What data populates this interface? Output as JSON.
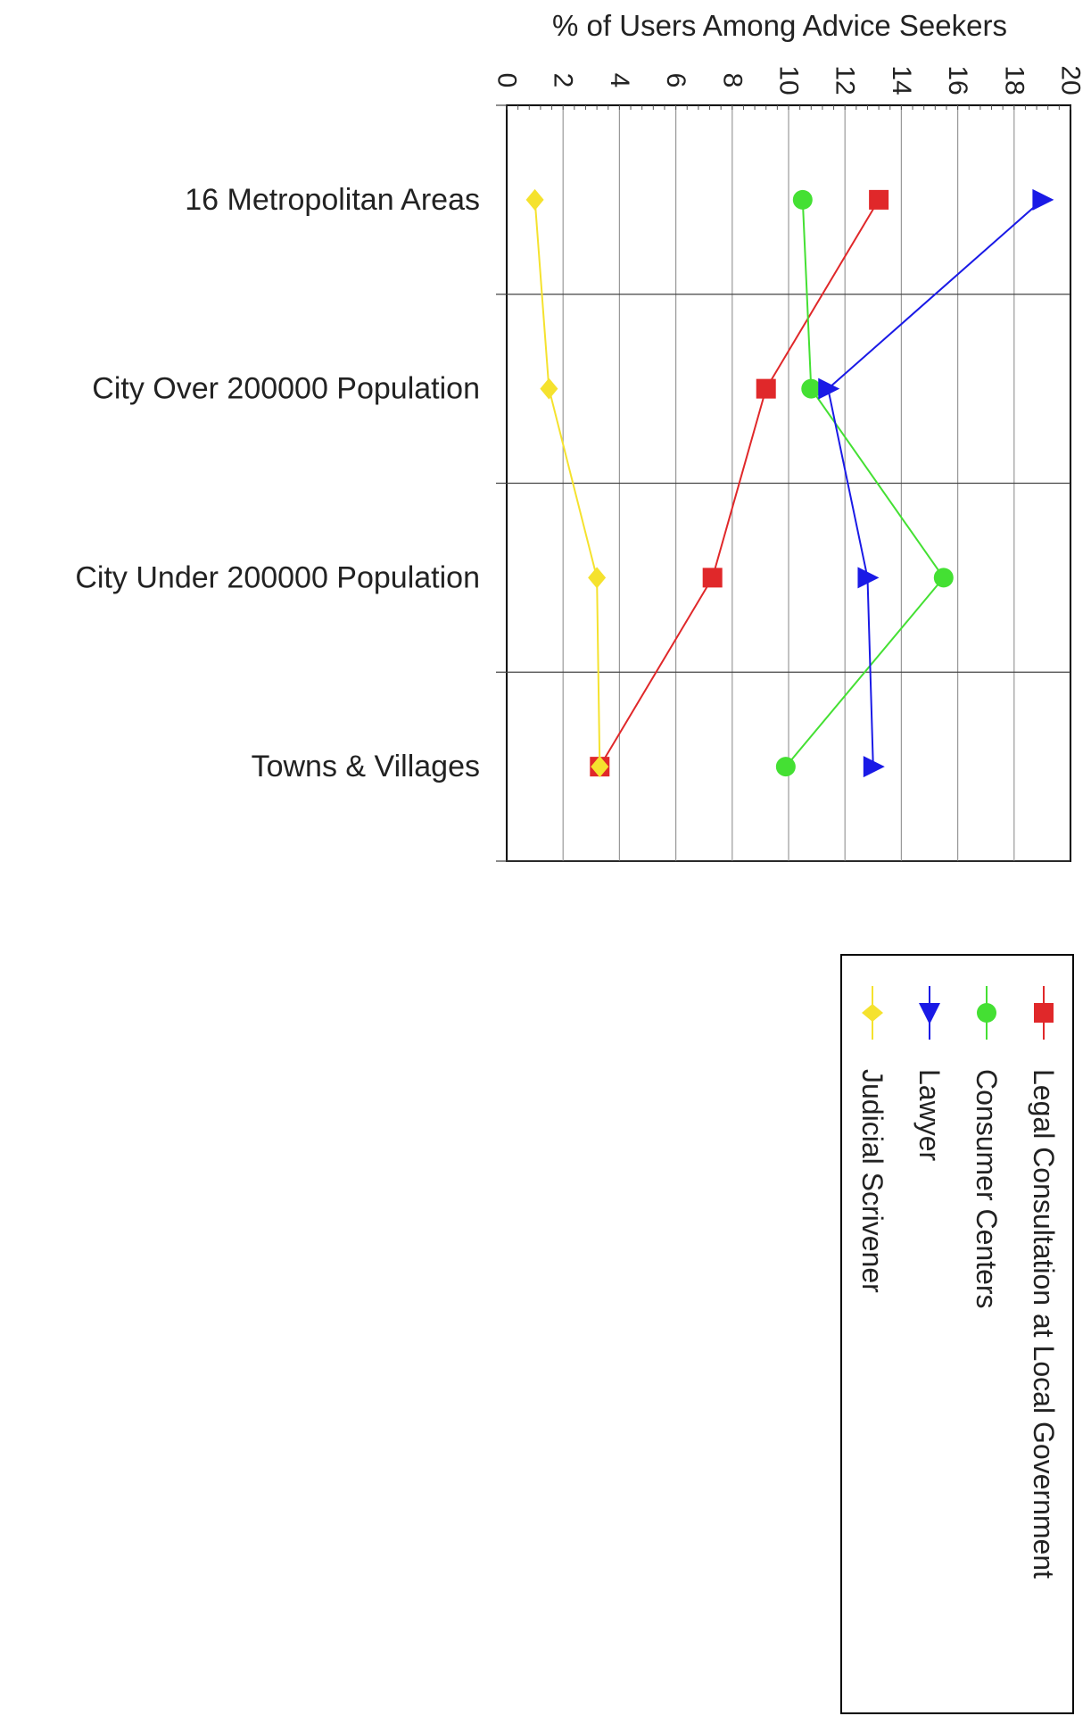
{
  "chart_data": {
    "type": "line",
    "orientation": "horizontal",
    "title": "",
    "xlabel": "% of Users Among Advice Seekers",
    "ylabel": "",
    "xlim": [
      0,
      20
    ],
    "x_ticks": [
      "0",
      "2",
      "4",
      "6",
      "8",
      "10",
      "12",
      "14",
      "16",
      "18",
      "20"
    ],
    "categories": [
      "16 Metropolitan Areas",
      "City Over 200000 Population",
      "City Under 200000 Population",
      "Towns & Villages"
    ],
    "grid": true,
    "legend_position": "bottom-right",
    "series": [
      {
        "name": "Legal Consultation at Local Government",
        "color": "#e0282a",
        "marker": "square",
        "values": [
          13.2,
          9.2,
          7.3,
          3.3
        ]
      },
      {
        "name": "Consumer Centers",
        "color": "#44e033",
        "marker": "circle",
        "values": [
          10.5,
          10.8,
          15.5,
          9.9
        ]
      },
      {
        "name": "Lawyer",
        "color": "#1a1ae6",
        "marker": "triangle",
        "values": [
          19.0,
          11.4,
          12.8,
          13.0
        ]
      },
      {
        "name": "Judicial Scrivener",
        "color": "#f5e22e",
        "marker": "diamond",
        "values": [
          1.0,
          1.5,
          3.2,
          3.3
        ]
      }
    ]
  }
}
